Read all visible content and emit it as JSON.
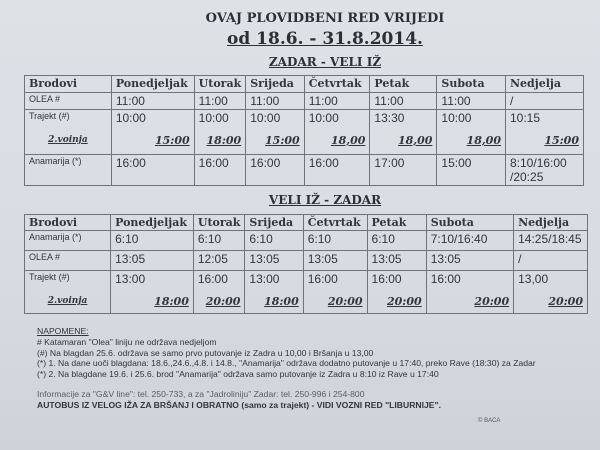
{
  "header": {
    "title": "OVAJ PLOVIDBENI RED VRIJEDI",
    "period": "od 18.6. - 31.8.2014."
  },
  "table1": {
    "route": "ZADAR - VELI IŽ",
    "columns": [
      "Brodovi",
      "Ponedjeljak",
      "Utorak",
      "Srijeda",
      "Četvrtak",
      "Petak",
      "Subota",
      "Nedjelja"
    ],
    "rows": [
      {
        "ship": "OLEA #",
        "times": [
          "11:00",
          "11:00",
          "11:00",
          "11:00",
          "11:00",
          "11:00",
          "/"
        ]
      },
      {
        "ship": "Trajekt (#)",
        "sub": "2.voinja",
        "times": [
          "10:00",
          "10:00",
          "10:00",
          "10:00",
          "13:30",
          "10:00",
          "10:15"
        ],
        "second": [
          "15:00",
          "18:00",
          "15:00",
          "18,00",
          "18,00",
          "18,00",
          "15:00"
        ]
      },
      {
        "ship": "Anamarija (*)",
        "times": [
          "16:00",
          "16:00",
          "16:00",
          "16:00",
          "17:00",
          "15:00",
          "8:10/16:00 /20:25"
        ]
      }
    ]
  },
  "table2": {
    "route": "VELI IŽ - ZADAR",
    "columns": [
      "Brodovi",
      "Ponedjeljak",
      "Utorak",
      "Srijeda",
      "Četvrtak",
      "Petak",
      "Subota",
      "Nedjelja"
    ],
    "rows": [
      {
        "ship": "Anamarija (*)",
        "times": [
          "6:10",
          "6:10",
          "6:10",
          "6:10",
          "6:10",
          "7:10/16:40",
          "14:25/18:45"
        ]
      },
      {
        "ship": "OLEA #",
        "times": [
          "13:05",
          "12:05",
          "13:05",
          "13:05",
          "13:05",
          "13:05",
          "/"
        ]
      },
      {
        "ship": "Trajekt (#)",
        "sub": "2.voinja",
        "times": [
          "13:00",
          "16:00",
          "13:00",
          "16:00",
          "16:00",
          "16:00",
          "13,00"
        ],
        "second": [
          "18:00",
          "20:00",
          "18:00",
          "20:00",
          "20:00",
          "20:00",
          "20:00"
        ]
      }
    ]
  },
  "notes": {
    "heading": "NAPOMENE:",
    "lines": [
      "# Katamaran \"Olea\" liniju ne održava nedjeljom",
      "(#) Na blagdan 25.6. održava se samo  prvo putovanje iz Zadra u 10,00 i Bršanja u 13,00",
      "(*) 1. Na dane uoči blagdana: 18.6.,24.6.,4.8. i 14.8., \"Anamarija\" održava dodatno putovanje u 17:40, preko Rave (18:30) za Zadar",
      "(*) 2. Na blagdane 19.6. i 25.6. brod \"Anamarija\" održava samo putovanje iz Zadra u 8:10 iz Rave u 17:40"
    ],
    "info": "Informacije za \"G&V line\": tel. 250-733, a za \"Jadroliniju\" Zadar: tel. 250-996  i 254-800",
    "bus": "AUTOBUS IZ VELOG IŽA ZA BRŠANJ I OBRATNO (samo za trajekt) - VIDI VOZNI RED \"LIBURNIJE\"."
  },
  "copyright": "© BACA"
}
